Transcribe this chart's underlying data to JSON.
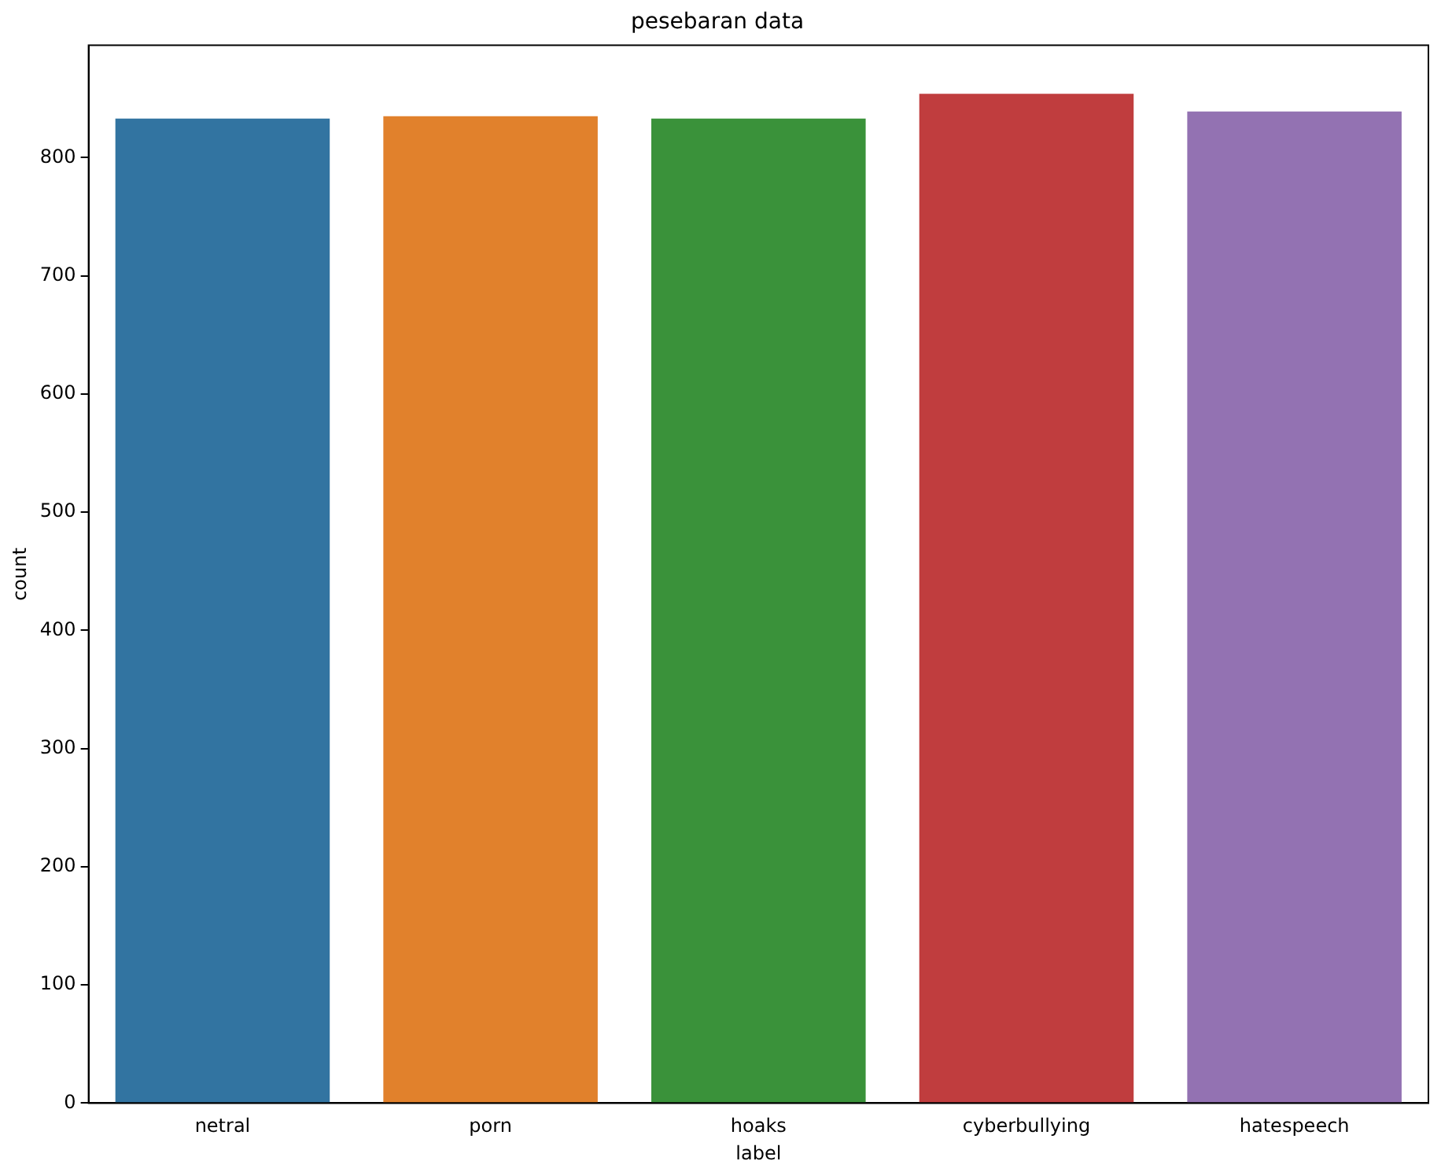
{
  "chart_data": {
    "type": "bar",
    "title": "pesebaran data",
    "xlabel": "label",
    "ylabel": "count",
    "categories": [
      "netral",
      "porn",
      "hoaks",
      "cyberbullying",
      "hatespeech"
    ],
    "values": [
      833,
      835,
      833,
      854,
      839
    ],
    "colors": [
      "#3274a1",
      "#e1812c",
      "#3a923a",
      "#c03d3e",
      "#9372b2"
    ],
    "ylim": [
      0,
      895
    ],
    "yticks": [
      0,
      100,
      200,
      300,
      400,
      500,
      600,
      700,
      800
    ],
    "grid": false,
    "legend": false
  }
}
